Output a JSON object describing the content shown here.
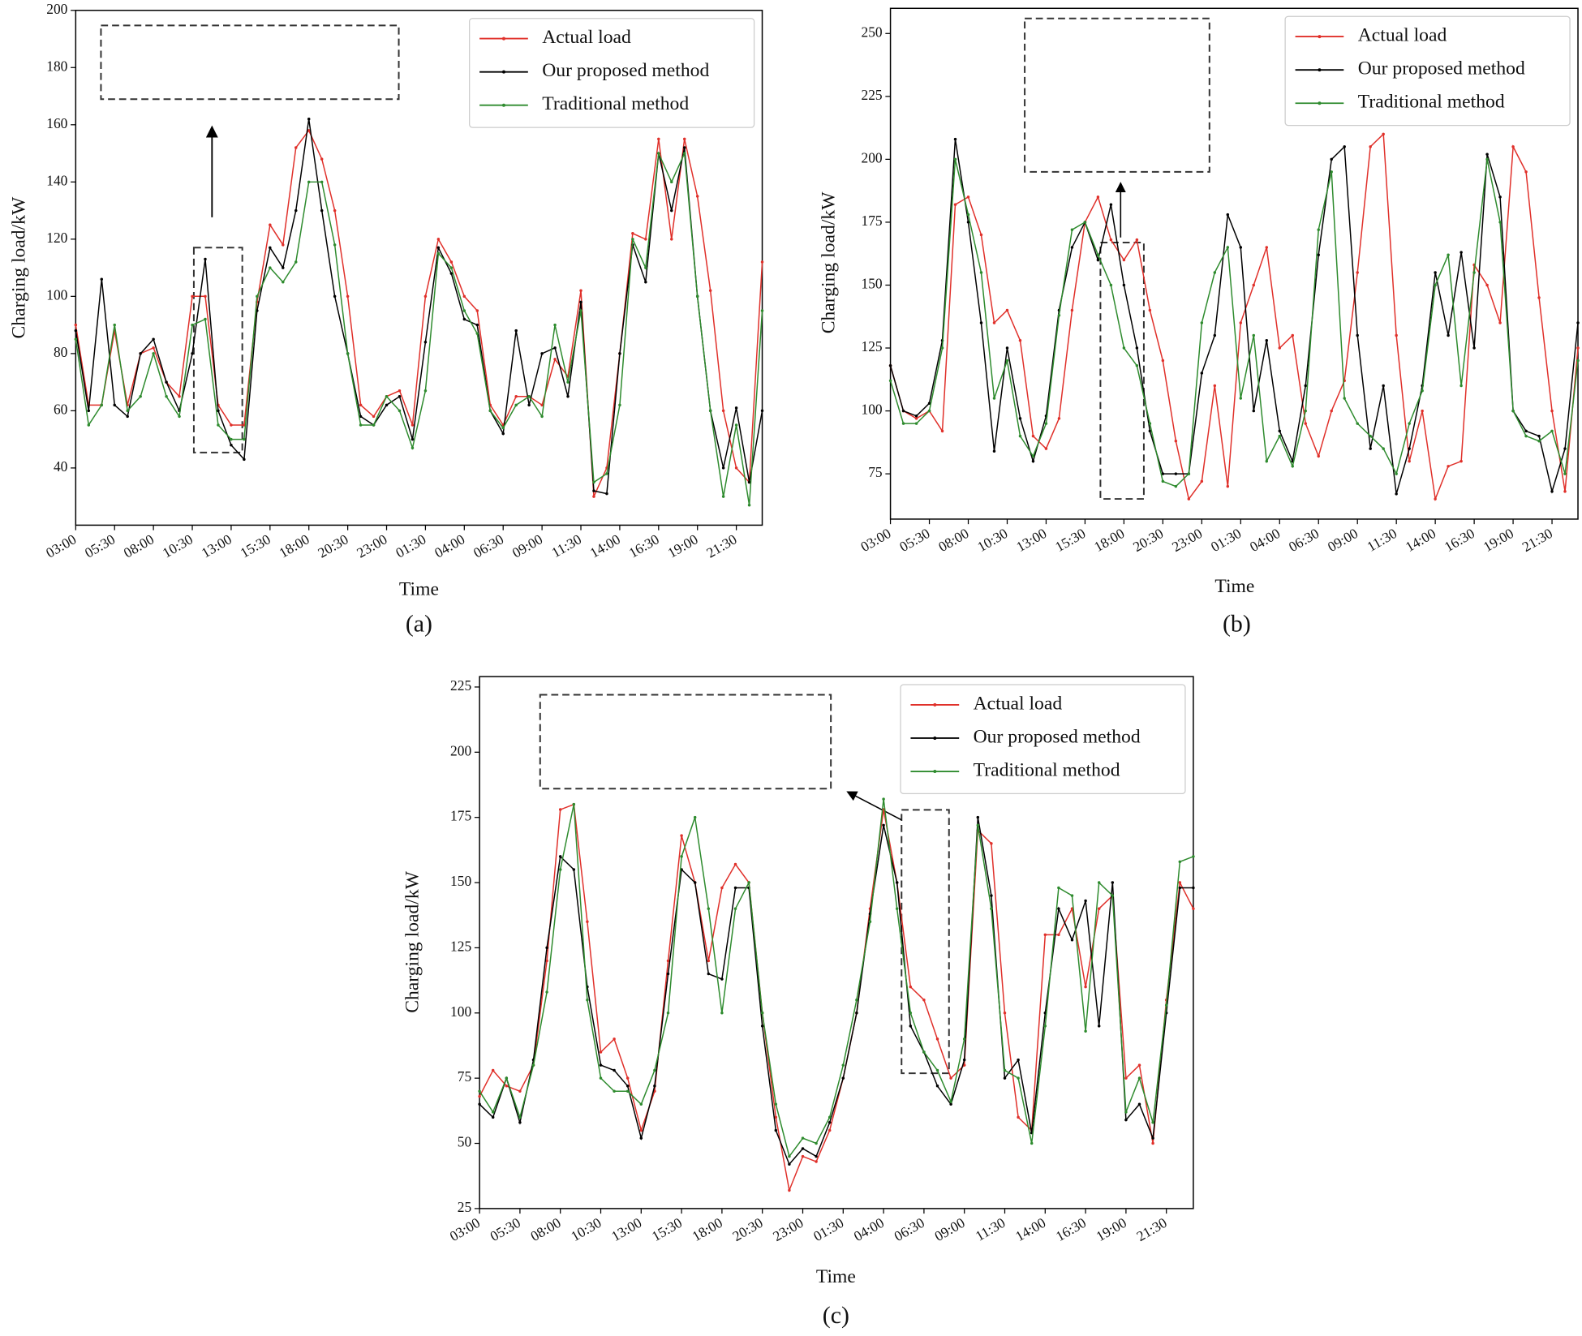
{
  "chart_data": [
    {
      "type": "line",
      "caption": "(a)",
      "xlabel": "Time",
      "ylabel": "Charging load/kW",
      "legend": "upper right",
      "categories": [
        "03:00",
        null,
        null,
        "05:30",
        null,
        null,
        "08:00",
        null,
        null,
        "10:30",
        null,
        null,
        "13:00",
        null,
        null,
        "15:30",
        null,
        null,
        "18:00",
        null,
        null,
        "20:30",
        null,
        null,
        "23:00",
        null,
        null,
        "01:30",
        null,
        null,
        "04:00",
        null,
        null,
        "06:30",
        null,
        null,
        "09:00",
        null,
        null,
        "11:30",
        null,
        null,
        "14:00",
        null,
        null,
        "16:30",
        null,
        null,
        "19:00",
        null,
        null,
        "21:30",
        null,
        null
      ],
      "ylim": [
        20,
        200
      ],
      "yticks": [
        40,
        60,
        80,
        100,
        120,
        140,
        160,
        180,
        200
      ],
      "series": [
        {
          "name": "Actual load",
          "color": "#e0302a",
          "values": [
            90,
            62,
            62,
            88,
            62,
            80,
            82,
            70,
            65,
            100,
            100,
            62,
            55,
            55,
            98,
            125,
            118,
            152,
            158,
            148,
            130,
            100,
            62,
            58,
            65,
            67,
            55,
            100,
            120,
            112,
            100,
            95,
            62,
            55,
            65,
            65,
            62,
            78,
            72,
            102,
            30,
            40,
            80,
            122,
            120,
            155,
            120,
            155,
            135,
            102,
            60,
            40,
            35,
            112
          ]
        },
        {
          "name": "Our proposed method",
          "color": "#000000",
          "values": [
            88,
            60,
            106,
            62,
            58,
            80,
            85,
            70,
            60,
            80,
            113,
            60,
            48,
            43,
            95,
            117,
            110,
            130,
            162,
            130,
            100,
            80,
            58,
            55,
            62,
            65,
            50,
            84,
            117,
            108,
            92,
            90,
            60,
            52,
            88,
            62,
            80,
            82,
            65,
            98,
            32,
            31,
            80,
            118,
            105,
            150,
            130,
            152,
            100,
            60,
            40,
            61,
            35,
            60
          ]
        },
        {
          "name": "Traditional method",
          "color": "#2e8b2e",
          "values": [
            85,
            55,
            62,
            90,
            60,
            65,
            80,
            65,
            58,
            90,
            92,
            55,
            50,
            50,
            100,
            110,
            105,
            112,
            140,
            140,
            118,
            80,
            55,
            55,
            65,
            60,
            47,
            67,
            115,
            110,
            95,
            87,
            60,
            54,
            62,
            65,
            58,
            90,
            70,
            95,
            35,
            38,
            62,
            120,
            110,
            150,
            140,
            150,
            100,
            60,
            30,
            55,
            27,
            95
          ]
        }
      ]
    },
    {
      "type": "line",
      "caption": "(b)",
      "xlabel": "Time",
      "ylabel": "Charging load/kW",
      "legend": "upper right",
      "categories": [
        "03:00",
        null,
        null,
        "05:30",
        null,
        null,
        "08:00",
        null,
        null,
        "10:30",
        null,
        null,
        "13:00",
        null,
        null,
        "15:30",
        null,
        null,
        "18:00",
        null,
        null,
        "20:30",
        null,
        null,
        "23:00",
        null,
        null,
        "01:30",
        null,
        null,
        "04:00",
        null,
        null,
        "06:30",
        null,
        null,
        "09:00",
        null,
        null,
        "11:30",
        null,
        null,
        "14:00",
        null,
        null,
        "16:30",
        null,
        null,
        "19:00",
        null,
        null,
        "21:30",
        null,
        null
      ],
      "ylim": [
        57,
        260
      ],
      "yticks": [
        75,
        100,
        125,
        150,
        175,
        200,
        225,
        250
      ],
      "series": [
        {
          "name": "Actual load",
          "color": "#e0302a",
          "values": [
            118,
            100,
            97,
            100,
            92,
            182,
            185,
            170,
            135,
            140,
            128,
            90,
            85,
            97,
            140,
            175,
            185,
            168,
            160,
            168,
            140,
            120,
            88,
            65,
            72,
            110,
            70,
            135,
            150,
            165,
            125,
            130,
            95,
            82,
            100,
            112,
            155,
            205,
            210,
            130,
            80,
            100,
            65,
            78,
            80,
            158,
            150,
            135,
            205,
            195,
            145,
            100,
            68,
            125
          ]
        },
        {
          "name": "Our proposed method",
          "color": "#000000",
          "values": [
            118,
            100,
            98,
            103,
            128,
            208,
            175,
            135,
            84,
            125,
            97,
            80,
            98,
            140,
            165,
            175,
            160,
            182,
            150,
            125,
            92,
            75,
            75,
            75,
            115,
            130,
            178,
            165,
            100,
            128,
            92,
            80,
            110,
            162,
            200,
            205,
            130,
            85,
            110,
            67,
            85,
            110,
            155,
            130,
            163,
            125,
            202,
            185,
            100,
            92,
            90,
            68,
            85,
            135
          ]
        },
        {
          "name": "Traditional method",
          "color": "#2e8b2e",
          "values": [
            112,
            95,
            95,
            100,
            125,
            200,
            178,
            155,
            105,
            120,
            90,
            82,
            95,
            138,
            172,
            175,
            162,
            150,
            125,
            118,
            95,
            72,
            70,
            75,
            135,
            155,
            165,
            105,
            130,
            80,
            90,
            78,
            100,
            172,
            195,
            105,
            95,
            90,
            85,
            75,
            95,
            108,
            150,
            162,
            110,
            155,
            200,
            175,
            100,
            90,
            88,
            92,
            75,
            120
          ]
        }
      ]
    },
    {
      "type": "line",
      "caption": "(c)",
      "xlabel": "Time",
      "ylabel": "Charging load/kW",
      "legend": "upper right",
      "categories": [
        "03:00",
        null,
        null,
        "05:30",
        null,
        null,
        "08:00",
        null,
        null,
        "10:30",
        null,
        null,
        "13:00",
        null,
        null,
        "15:30",
        null,
        null,
        "18:00",
        null,
        null,
        "20:30",
        null,
        null,
        "23:00",
        null,
        null,
        "01:30",
        null,
        null,
        "04:00",
        null,
        null,
        "06:30",
        null,
        null,
        "09:00",
        null,
        null,
        "11:30",
        null,
        null,
        "14:00",
        null,
        null,
        "16:30",
        null,
        null,
        "19:00",
        null,
        null,
        "21:30",
        null,
        null
      ],
      "ylim": [
        25,
        229
      ],
      "yticks": [
        25,
        50,
        75,
        100,
        125,
        150,
        175,
        200,
        225
      ],
      "series": [
        {
          "name": "Actual load",
          "color": "#e0302a",
          "values": [
            68,
            78,
            72,
            70,
            80,
            120,
            178,
            180,
            135,
            85,
            90,
            75,
            55,
            70,
            120,
            168,
            150,
            120,
            148,
            157,
            150,
            100,
            60,
            32,
            45,
            43,
            55,
            75,
            100,
            140,
            178,
            150,
            110,
            105,
            90,
            75,
            80,
            170,
            165,
            100,
            60,
            55,
            130,
            130,
            140,
            110,
            140,
            145,
            75,
            80,
            50,
            105,
            150,
            140
          ]
        },
        {
          "name": "Our proposed method",
          "color": "#000000",
          "values": [
            65,
            60,
            75,
            58,
            82,
            125,
            160,
            155,
            110,
            80,
            78,
            72,
            52,
            72,
            115,
            155,
            150,
            115,
            113,
            148,
            148,
            95,
            55,
            42,
            48,
            45,
            58,
            75,
            100,
            138,
            172,
            150,
            95,
            85,
            72,
            65,
            82,
            175,
            145,
            75,
            82,
            54,
            100,
            140,
            128,
            143,
            95,
            150,
            59,
            65,
            52,
            100,
            148,
            148
          ]
        },
        {
          "name": "Traditional method",
          "color": "#2e8b2e",
          "values": [
            70,
            62,
            75,
            60,
            80,
            108,
            155,
            180,
            105,
            75,
            70,
            70,
            65,
            78,
            100,
            160,
            175,
            140,
            100,
            140,
            150,
            100,
            65,
            45,
            52,
            50,
            60,
            80,
            105,
            135,
            182,
            140,
            100,
            85,
            78,
            66,
            90,
            172,
            140,
            78,
            75,
            50,
            95,
            148,
            145,
            93,
            150,
            145,
            62,
            75,
            58,
            103,
            158,
            160
          ]
        }
      ]
    }
  ]
}
